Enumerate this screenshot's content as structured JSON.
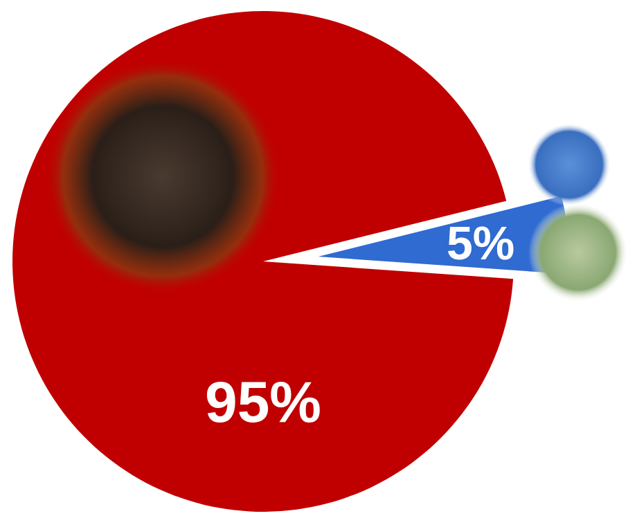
{
  "chart_data": {
    "type": "pie",
    "values": [
      95,
      5
    ],
    "value_labels": [
      "95%",
      "5%"
    ],
    "colors": [
      "#c00000",
      "#2f6bd0"
    ],
    "data_labels": true
  }
}
